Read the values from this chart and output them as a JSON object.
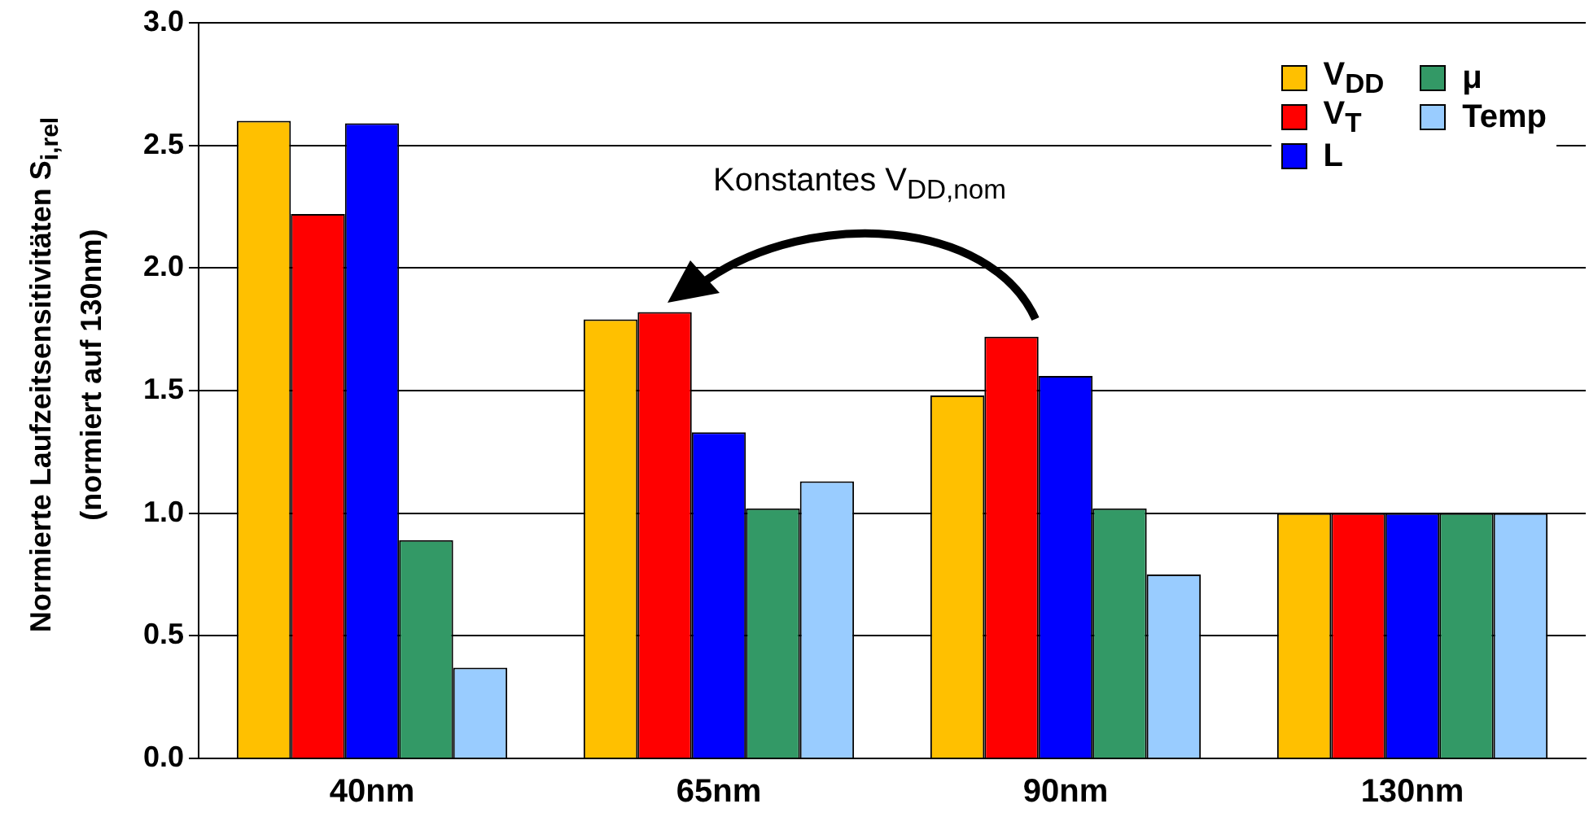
{
  "chart_data": {
    "type": "bar",
    "ylabel": "Normierte Laufzeitsensitivitäten S$_{i,rel}$\n(normiert auf 130nm)",
    "categories": [
      "40nm",
      "65nm",
      "90nm",
      "130nm"
    ],
    "series": [
      {
        "name": "V$_{DD}$",
        "color": "#ffc000",
        "values": [
          2.6,
          1.79,
          1.48,
          1.0
        ]
      },
      {
        "name": "V$_{T}$",
        "color": "#ff0000",
        "values": [
          2.22,
          1.82,
          1.72,
          1.0
        ]
      },
      {
        "name": "L",
        "color": "#0000ff",
        "values": [
          2.59,
          1.33,
          1.56,
          1.0
        ]
      },
      {
        "name": "μ",
        "color": "#339966",
        "values": [
          0.89,
          1.02,
          1.02,
          1.0
        ]
      },
      {
        "name": "Temp",
        "color": "#99ccff",
        "values": [
          0.37,
          1.13,
          0.75,
          1.0
        ]
      }
    ],
    "ylim": [
      0,
      3
    ],
    "yticks": [
      {
        "value": 0,
        "label": "0.0"
      },
      {
        "value": 0.5,
        "label": "0.5"
      },
      {
        "value": 1,
        "label": "1.0"
      },
      {
        "value": 1.5,
        "label": "1.5"
      },
      {
        "value": 2,
        "label": "2.0"
      },
      {
        "value": 2.5,
        "label": "2.5"
      },
      {
        "value": 3,
        "label": "3.0"
      }
    ],
    "grid": "y",
    "legend": "top right",
    "annotations": [
      "Konstantes V$_{DD,nom}$"
    ]
  }
}
